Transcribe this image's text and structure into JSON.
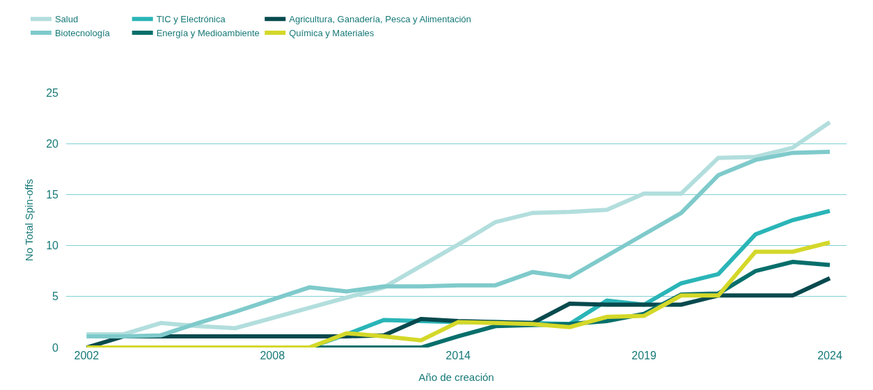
{
  "chart_data": {
    "type": "line",
    "xlabel": "Año de creación",
    "ylabel": "No Total Spin-offs",
    "categories": [
      "2002",
      null,
      null,
      null,
      null,
      "2008",
      null,
      null,
      null,
      null,
      "2014",
      null,
      null,
      null,
      null,
      "2019",
      null,
      null,
      null,
      null,
      "2024"
    ],
    "ylim": [
      0,
      25
    ],
    "yticks": [
      0,
      5,
      10,
      15,
      20,
      25
    ],
    "grid": "y",
    "legend": "top left",
    "marker": "none",
    "line_style": "solid",
    "series": [
      {
        "name": "Salud",
        "color": "#b2dedd",
        "values": [
          1.3,
          1.3,
          2.4,
          2.1,
          1.9,
          2.9,
          3.9,
          4.9,
          5.9,
          8.0,
          10.1,
          12.3,
          13.2,
          13.3,
          13.5,
          15.1,
          15.1,
          18.6,
          18.7,
          19.6,
          22.1
        ]
      },
      {
        "name": "TIC y Electrónica",
        "color": "#2ab5b7",
        "values": [
          0,
          0,
          0,
          0,
          0,
          0,
          0,
          1.3,
          2.7,
          2.6,
          2.5,
          2.5,
          2.4,
          2.3,
          4.6,
          4.2,
          6.3,
          7.2,
          11.1,
          12.5,
          13.4
        ]
      },
      {
        "name": "Agricultura, Ganadería, Pesca y Alimentación",
        "color": "#074a4e",
        "values": [
          0,
          1.1,
          1.1,
          1.1,
          1.1,
          1.1,
          1.1,
          1.1,
          1.2,
          2.8,
          2.6,
          2.5,
          2.4,
          4.3,
          4.2,
          4.2,
          4.2,
          5.1,
          5.1,
          5.1,
          6.8
        ]
      },
      {
        "name": "Biotecnología",
        "color": "#7fcacb",
        "values": [
          1.1,
          1.1,
          1.2,
          2.4,
          3.5,
          4.7,
          5.9,
          5.5,
          6.0,
          6.0,
          6.1,
          6.1,
          7.4,
          6.9,
          9.0,
          11.1,
          13.2,
          16.9,
          18.4,
          19.1,
          19.2
        ]
      },
      {
        "name": "Energía y Medioambiente",
        "color": "#066f6b",
        "values": [
          0,
          0,
          0,
          0,
          0,
          0,
          0,
          0,
          0,
          0,
          1.1,
          2.1,
          2.2,
          2.3,
          2.6,
          3.3,
          5.2,
          5.3,
          7.5,
          8.4,
          8.1
        ]
      },
      {
        "name": "Química y Materiales",
        "color": "#d4d829",
        "values": [
          0,
          0,
          0,
          0,
          0,
          0,
          0,
          1.4,
          1.1,
          0.7,
          2.5,
          2.4,
          2.3,
          2.0,
          3.0,
          3.1,
          5.1,
          5.1,
          9.4,
          9.4,
          10.3
        ]
      }
    ]
  }
}
